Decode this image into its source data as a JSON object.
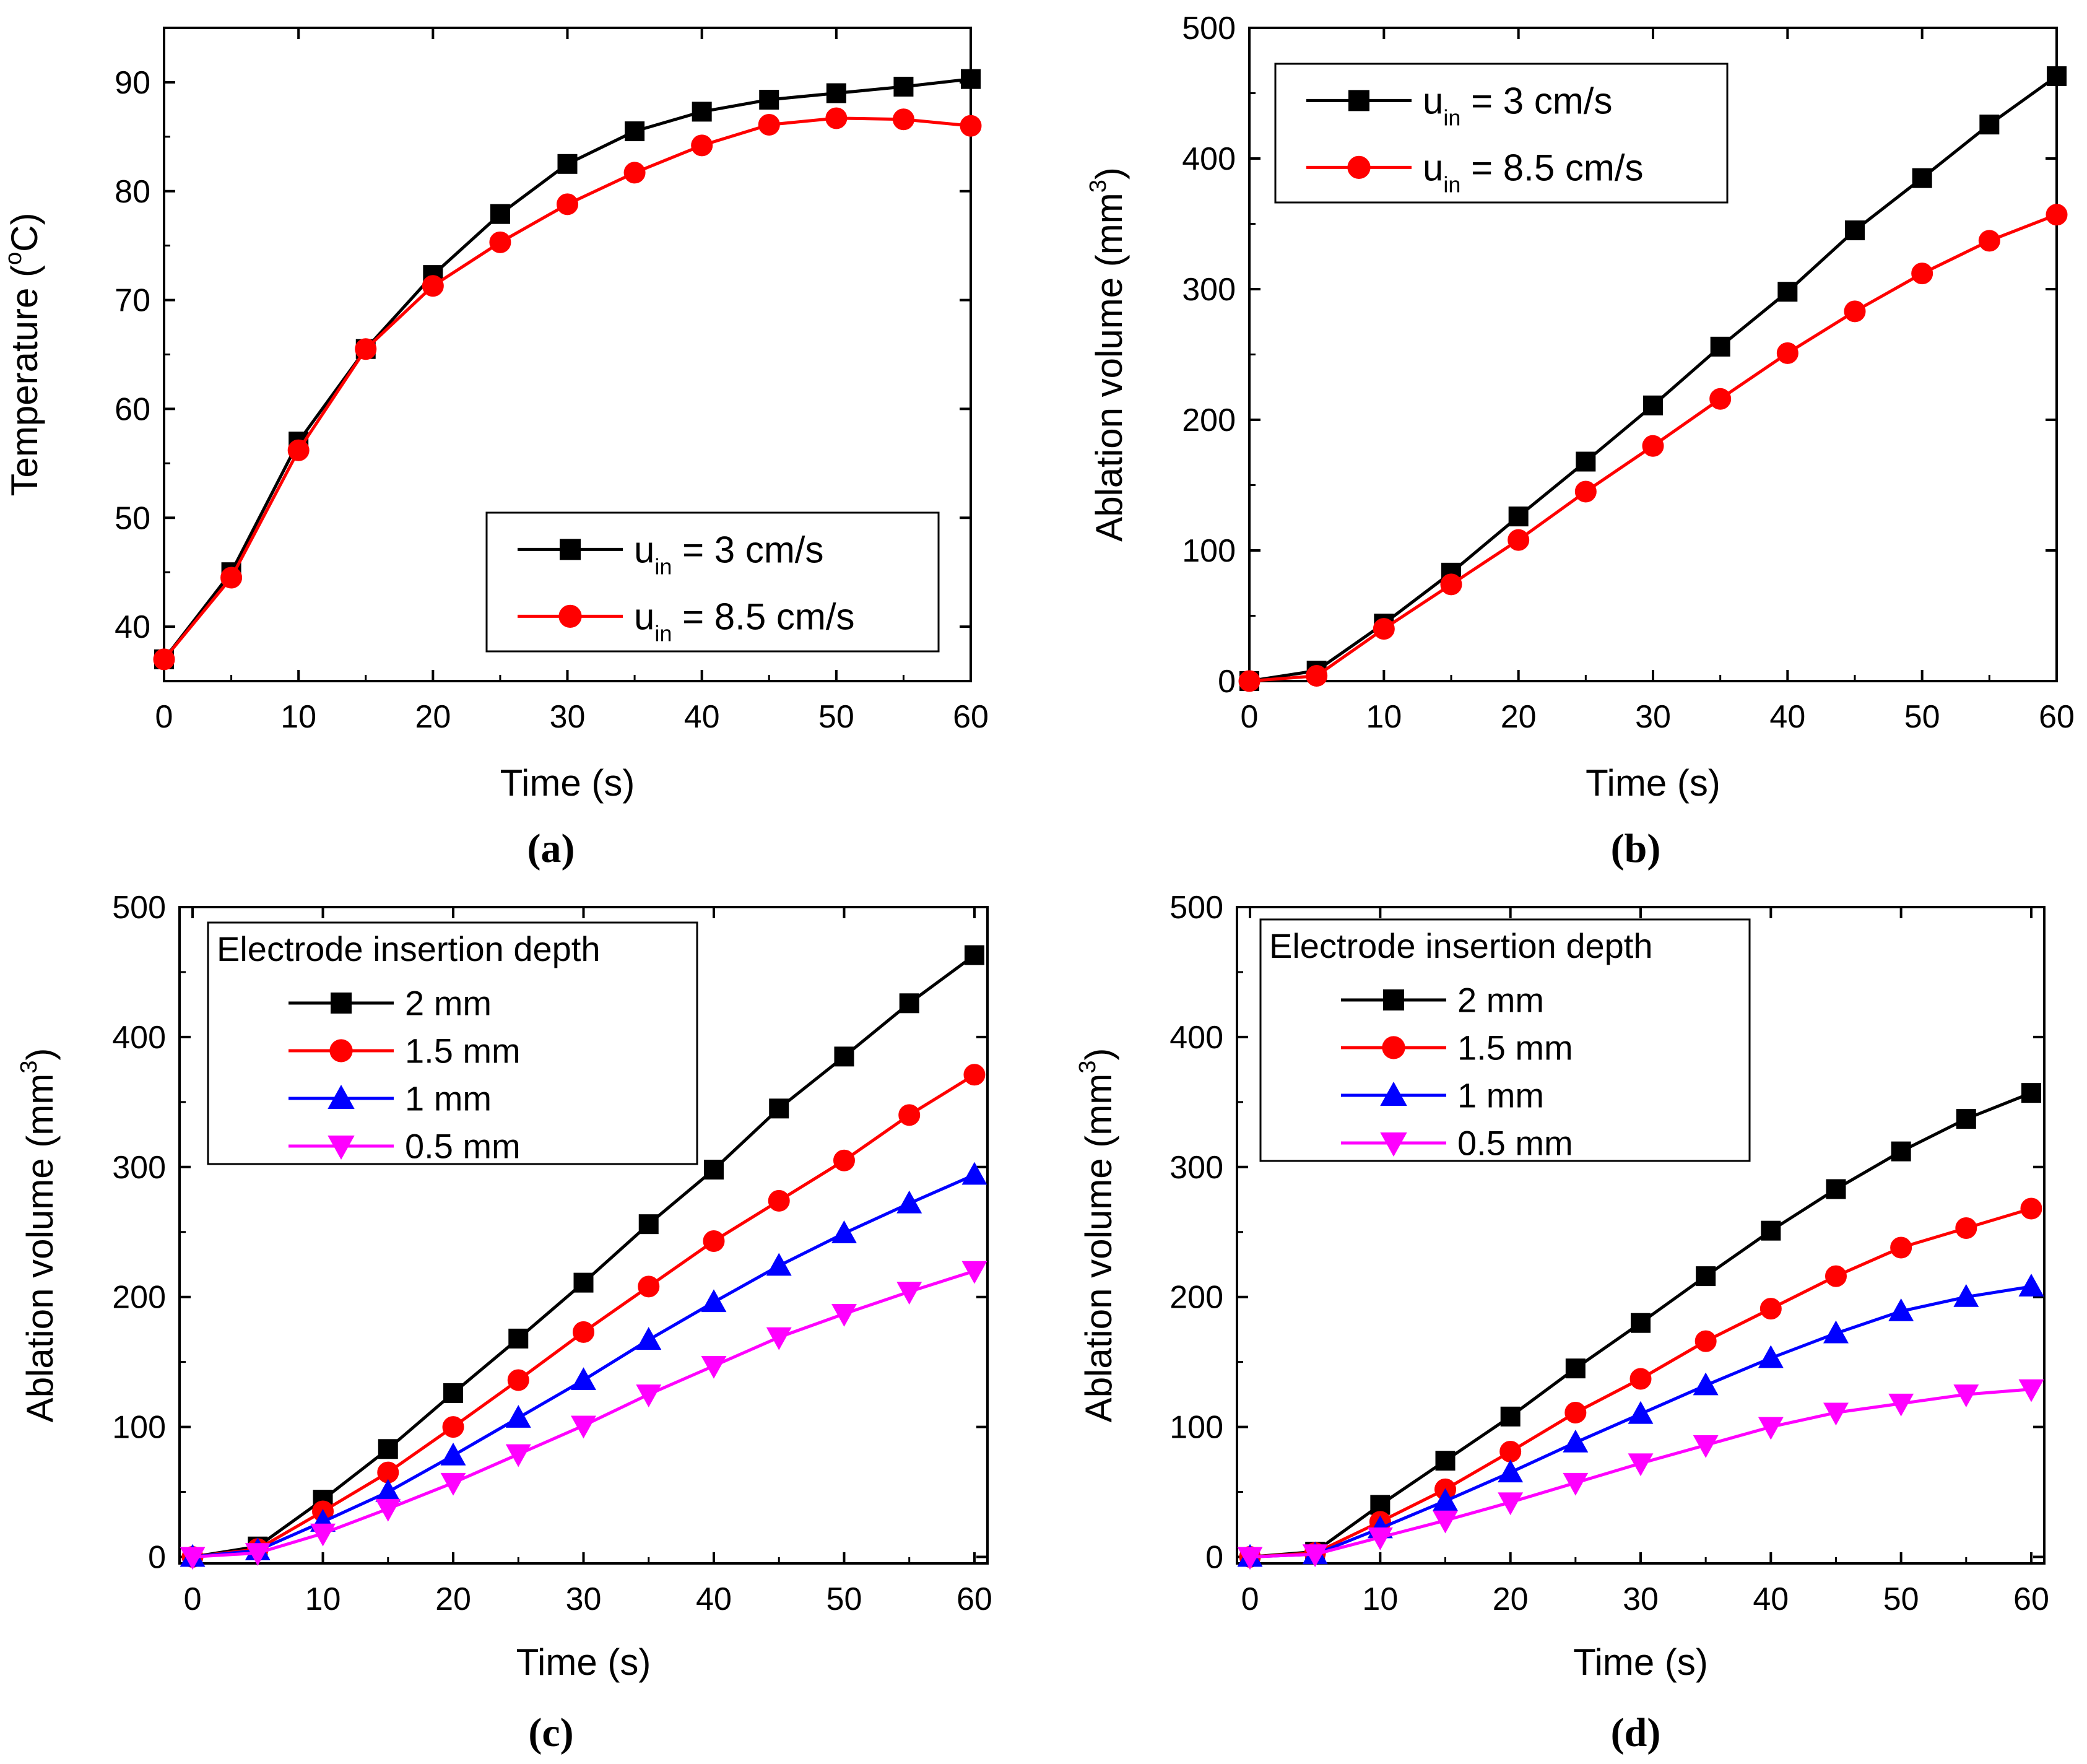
{
  "figure": {
    "panel_count": 4
  },
  "chart_data": [
    {
      "id": "a",
      "type": "line",
      "panel_label": "(a)",
      "title": "",
      "xlabel": "Time (s)",
      "ylabel": {
        "main": "Temperature (",
        "sup": "o",
        "tail": "C)"
      },
      "xlim": [
        0,
        60
      ],
      "ylim": [
        35,
        95
      ],
      "xticks": [
        0,
        10,
        20,
        30,
        40,
        50,
        60
      ],
      "yticks": [
        40,
        50,
        60,
        70,
        80,
        90
      ],
      "grid": false,
      "legend": {
        "placement": "bottom-right",
        "title": ""
      },
      "series": [
        {
          "name": "u_in = 3 cm/s",
          "label": {
            "pre": "u",
            "sub": "in",
            "post": " = 3 cm/s"
          },
          "color": "#000000",
          "marker": "square",
          "x": [
            0,
            5,
            10,
            15,
            20,
            25,
            30,
            35,
            40,
            45,
            50,
            55,
            60
          ],
          "y": [
            37,
            45,
            57,
            65.5,
            72.3,
            77.9,
            82.5,
            85.5,
            87.3,
            88.4,
            89,
            89.6,
            90.3
          ]
        },
        {
          "name": "u_in = 8.5 cm/s",
          "label": {
            "pre": "u",
            "sub": "in",
            "post": " = 8.5 cm/s"
          },
          "color": "#ff0000",
          "marker": "circle",
          "x": [
            0,
            5,
            10,
            15,
            20,
            25,
            30,
            35,
            40,
            45,
            50,
            55,
            60
          ],
          "y": [
            37,
            44.5,
            56.2,
            65.5,
            71.3,
            75.3,
            78.8,
            81.7,
            84.2,
            86.1,
            86.7,
            86.6,
            86
          ]
        }
      ]
    },
    {
      "id": "b",
      "type": "line",
      "panel_label": "(b)",
      "title": "",
      "xlabel": "Time (s)",
      "ylabel": {
        "main": "Ablation volume (mm",
        "sup": "3",
        "tail": ")"
      },
      "xlim": [
        0,
        60
      ],
      "ylim": [
        0,
        500
      ],
      "xticks": [
        0,
        10,
        20,
        30,
        40,
        50,
        60
      ],
      "yticks": [
        0,
        100,
        200,
        300,
        400,
        500
      ],
      "grid": false,
      "legend": {
        "placement": "top-left",
        "title": ""
      },
      "series": [
        {
          "name": "u_in = 3 cm/s",
          "label": {
            "pre": "u",
            "sub": "in",
            "post": " = 3 cm/s"
          },
          "color": "#000000",
          "marker": "square",
          "x": [
            0,
            5,
            10,
            15,
            20,
            25,
            30,
            35,
            40,
            45,
            50,
            55,
            60
          ],
          "y": [
            0,
            8,
            44,
            83,
            126,
            168,
            211,
            256,
            298,
            345,
            385,
            426,
            463
          ]
        },
        {
          "name": "u_in = 8.5 cm/s",
          "label": {
            "pre": "u",
            "sub": "in",
            "post": " = 8.5 cm/s"
          },
          "color": "#ff0000",
          "marker": "circle",
          "x": [
            0,
            5,
            10,
            15,
            20,
            25,
            30,
            35,
            40,
            45,
            50,
            55,
            60
          ],
          "y": [
            0,
            4,
            40,
            74,
            108,
            145,
            180,
            216,
            251,
            283,
            312,
            337,
            357
          ]
        }
      ]
    },
    {
      "id": "c",
      "type": "line",
      "panel_label": "(c)",
      "title": "",
      "xlabel": "Time (s)",
      "ylabel": {
        "main": "Ablation volume (mm",
        "sup": "3",
        "tail": ")"
      },
      "xlim": [
        -1,
        61
      ],
      "ylim": [
        -5,
        500
      ],
      "xticks": [
        0,
        10,
        20,
        30,
        40,
        50,
        60
      ],
      "yticks": [
        0,
        100,
        200,
        300,
        400,
        500
      ],
      "grid": false,
      "legend": {
        "placement": "top-left",
        "title": "Electrode insertion depth"
      },
      "series": [
        {
          "name": "2 mm",
          "color": "#000000",
          "marker": "square",
          "x": [
            0,
            5,
            10,
            15,
            20,
            25,
            30,
            35,
            40,
            45,
            50,
            55,
            60
          ],
          "y": [
            0,
            8,
            44,
            83,
            126,
            168,
            211,
            256,
            298,
            345,
            385,
            426,
            463
          ]
        },
        {
          "name": "1.5 mm",
          "color": "#ff0000",
          "marker": "circle",
          "x": [
            0,
            5,
            10,
            15,
            20,
            25,
            30,
            35,
            40,
            45,
            50,
            55,
            60
          ],
          "y": [
            0,
            6,
            35,
            65,
            100,
            136,
            173,
            208,
            243,
            274,
            305,
            340,
            371
          ]
        },
        {
          "name": "1 mm",
          "color": "#0000ff",
          "marker": "triangle-up",
          "x": [
            0,
            5,
            10,
            15,
            20,
            25,
            30,
            35,
            40,
            45,
            50,
            55,
            60
          ],
          "y": [
            0,
            5,
            27,
            50,
            78,
            107,
            136,
            167,
            196,
            224,
            249,
            272,
            294
          ]
        },
        {
          "name": "0.5 mm",
          "color": "#ff00ff",
          "marker": "triangle-down",
          "x": [
            0,
            5,
            10,
            15,
            20,
            25,
            30,
            35,
            40,
            45,
            50,
            55,
            60
          ],
          "y": [
            0,
            3,
            18,
            37,
            57,
            79,
            101,
            125,
            147,
            169,
            187,
            204,
            220
          ]
        }
      ]
    },
    {
      "id": "d",
      "type": "line",
      "panel_label": "(d)",
      "title": "",
      "xlabel": "Time (s)",
      "ylabel": {
        "main": "Ablation volume (mm",
        "sup": "3",
        "tail": ")"
      },
      "xlim": [
        -1,
        61
      ],
      "ylim": [
        -5,
        500
      ],
      "xticks": [
        0,
        10,
        20,
        30,
        40,
        50,
        60
      ],
      "yticks": [
        0,
        100,
        200,
        300,
        400,
        500
      ],
      "grid": false,
      "legend": {
        "placement": "top-left",
        "title": "Electrode insertion depth"
      },
      "series": [
        {
          "name": "2 mm",
          "color": "#000000",
          "marker": "square",
          "x": [
            0,
            5,
            10,
            15,
            20,
            25,
            30,
            35,
            40,
            45,
            50,
            55,
            60
          ],
          "y": [
            0,
            4,
            40,
            74,
            108,
            145,
            180,
            216,
            251,
            283,
            312,
            337,
            357
          ]
        },
        {
          "name": "1.5 mm",
          "color": "#ff0000",
          "marker": "circle",
          "x": [
            0,
            5,
            10,
            15,
            20,
            25,
            30,
            35,
            40,
            45,
            50,
            55,
            60
          ],
          "y": [
            0,
            3,
            27,
            52,
            81,
            111,
            137,
            166,
            191,
            216,
            238,
            253,
            268
          ]
        },
        {
          "name": "1 mm",
          "color": "#0000ff",
          "marker": "triangle-up",
          "x": [
            0,
            5,
            10,
            15,
            20,
            25,
            30,
            35,
            40,
            45,
            50,
            55,
            60
          ],
          "y": [
            0,
            2,
            22,
            43,
            65,
            88,
            110,
            132,
            153,
            172,
            189,
            200,
            208
          ]
        },
        {
          "name": "0.5 mm",
          "color": "#ff00ff",
          "marker": "triangle-down",
          "x": [
            0,
            5,
            10,
            15,
            20,
            25,
            30,
            35,
            40,
            45,
            50,
            55,
            60
          ],
          "y": [
            0,
            2,
            15,
            28,
            42,
            57,
            72,
            86,
            100,
            111,
            118,
            125,
            129
          ]
        }
      ]
    }
  ]
}
